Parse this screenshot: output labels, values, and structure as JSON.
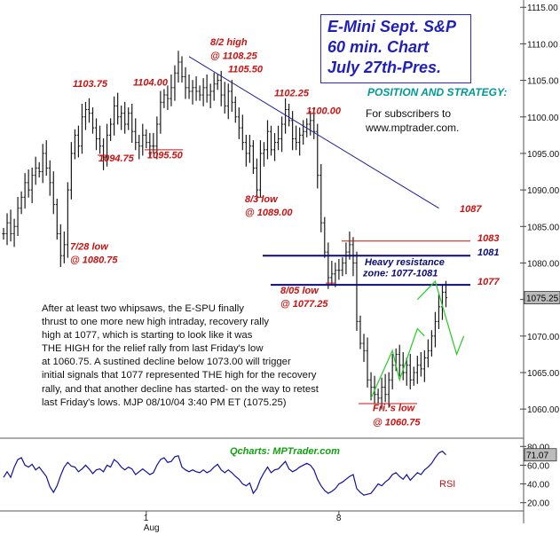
{
  "header": {
    "title_lines": [
      "E-Mini Sept. S&P",
      "60 min. Chart",
      "July 27th-Pres."
    ],
    "strategy_heading": "POSITION AND STRATEGY:",
    "subscriber_lines": [
      "For subscribers to",
      "www.mptrader.com."
    ]
  },
  "commentary": {
    "lines": [
      "After at least two whipsaws, the E-SPU finally",
      "thrust to one more new high intraday, recovery rally",
      "high at 1077, which is starting to look like it was",
      "THE HIGH for the relief rally from last Friday's low",
      "at 1060.75. A sustined decline below 1073.00 will trigger",
      "initial signals that 1077 represented THE high for the recovery",
      "rally, and that another decline has started- on the way to retest",
      "last Friday's lows.  MJP 08/10/04 3:40 PM ET (1075.25)"
    ]
  },
  "footer": {
    "source": "Qcharts: MPTrader.com",
    "rsi_label": "RSI"
  },
  "colors": {
    "title": "#1f1fbf",
    "annotation_red": "#cc1111",
    "price_bar": "#1a1a1a",
    "trendline": "#1c1c9c",
    "resistance": "#0b0b7a",
    "projection": "#22cc22",
    "strategy_heading": "#009999",
    "rsi_line": "#1010a0",
    "source": "#10a010",
    "last_price_box": "#bbbbbb"
  },
  "chart_data": [
    {
      "type": "line",
      "title": "E-Mini Sept. S&P 60 min. Chart",
      "ylim": [
        1056.5,
        1116
      ],
      "y_ticks": [
        1060,
        1065,
        1070,
        1075,
        1080,
        1085,
        1090,
        1095,
        1100,
        1105,
        1110,
        1115
      ],
      "y_tick_labels": [
        "1060.00",
        "1065.00",
        "1070.00",
        "1075.00",
        "1080.00",
        "1085.00",
        "1090.00",
        "1095.00",
        "1100.00",
        "1105.00",
        "1110.00",
        "1115.00"
      ],
      "x_range": [
        0,
        125
      ],
      "x_ticks": [
        {
          "bar": 40,
          "label": "1",
          "sublabel": "Aug"
        },
        {
          "bar": 94,
          "label": "8",
          "sublabel": ""
        }
      ],
      "last_price": {
        "value": 1075.25,
        "label": "1075.25"
      },
      "series": [
        {
          "name": "",
          "close": [
            1084,
            1085.5,
            1084,
            1085,
            1087.5,
            1089,
            1091,
            1090,
            1092,
            1093,
            1092.5,
            1095,
            1093,
            1091,
            1088,
            1084,
            1081,
            1082.5,
            1090,
            1095,
            1097.5,
            1096,
            1100,
            1101,
            1100.5,
            1098.5,
            1097,
            1096,
            1094.5,
            1097.5,
            1099,
            1101.5,
            1100,
            1100.5,
            1099,
            1100.5,
            1098,
            1096.5,
            1096,
            1097.5,
            1096.5,
            1096,
            1096,
            1099,
            1102,
            1103,
            1102.5,
            1104,
            1106,
            1107.5,
            1105.5,
            1104,
            1103.5,
            1104,
            1103.5,
            1103,
            1104,
            1103,
            1103.5,
            1104.5,
            1105,
            1103,
            1101.5,
            1103.5,
            1102,
            1100,
            1098.5,
            1096.5,
            1095,
            1096,
            1093,
            1090,
            1095,
            1095.5,
            1098,
            1095.5,
            1096.5,
            1097,
            1099,
            1101,
            1099.5,
            1097,
            1096.5,
            1097.5,
            1098,
            1099,
            1099.5,
            1098,
            1092,
            1085.5,
            1081.5,
            1078,
            1078.5,
            1079,
            1079,
            1080,
            1081.5,
            1082.5,
            1080,
            1072,
            1069,
            1068,
            1064,
            1063,
            1062,
            1061.5,
            1063,
            1062,
            1064,
            1066,
            1067.5,
            1066,
            1065,
            1066,
            1064,
            1065,
            1066,
            1065.5,
            1067,
            1068,
            1070,
            1072,
            1074,
            1076,
            1075.25
          ]
        }
      ],
      "annotations": [
        {
          "text": "8/2  high",
          "price": 1109.8
        },
        {
          "text": "@ 1108.25",
          "price": 1107.9
        },
        {
          "text": "1105.50",
          "price": 1106.1
        },
        {
          "text": "1103.75",
          "price": 1104.1
        },
        {
          "text": "1104.00",
          "price": 1104.3
        },
        {
          "text": "1102.25",
          "price": 1102.8
        },
        {
          "text": "1100.00",
          "price": 1100.4
        },
        {
          "text": "1094.75",
          "price": 1093.9
        },
        {
          "text": "1095.50",
          "price": 1094.3
        },
        {
          "text": "8/3 low",
          "price": 1088.3
        },
        {
          "text": "@ 1089.00",
          "price": 1086.5
        },
        {
          "text": "7/28 low",
          "price": 1081.8
        },
        {
          "text": "@ 1080.75",
          "price": 1080.0
        },
        {
          "text": "1087",
          "price": 1087
        },
        {
          "text": "1083",
          "price": 1083
        },
        {
          "text": "1081",
          "price": 1081
        },
        {
          "text": "Heavy resistance",
          "price": 1079.7
        },
        {
          "text": "zone: 1077-1081",
          "price": 1078.2
        },
        {
          "text": "1077",
          "price": 1077
        },
        {
          "text": "8/05 low",
          "price": 1075.8
        },
        {
          "text": "@ 1077.25",
          "price": 1074.0
        },
        {
          "text": "Fri.'s low",
          "price": 1059.7
        },
        {
          "text": "@ 1060.75",
          "price": 1057.8
        }
      ],
      "levels": [
        {
          "name": "1083",
          "value": 1083
        },
        {
          "name": "1081",
          "value": 1081
        },
        {
          "name": "1077",
          "value": 1077
        }
      ],
      "trendline": {
        "from": {
          "bar": 52,
          "price": 1108.25
        },
        "to": {
          "bar": 122,
          "price": 1087.5
        }
      },
      "projection": [
        {
          "bar": 116,
          "price": 1075
        },
        {
          "bar": 121,
          "price": 1077.5
        },
        {
          "bar": 127,
          "price": 1067.5
        },
        {
          "bar": 129,
          "price": 1070
        }
      ]
    },
    {
      "type": "line",
      "title": "",
      "ylabel": "RSI",
      "ylim": [
        15,
        85
      ],
      "y_ticks": [
        20,
        40,
        60,
        80
      ],
      "y_tick_labels": [
        "20.00",
        "40.00",
        "60.00",
        "80.00"
      ],
      "last_value": {
        "value": 71.07,
        "label": "71.07"
      },
      "series": [
        {
          "name": "RSI",
          "values": [
            47,
            53,
            47,
            58,
            66,
            68,
            60,
            58,
            61,
            55,
            58,
            53,
            48,
            37,
            31,
            38,
            49,
            58,
            63,
            59,
            58,
            53,
            56,
            60,
            56,
            51,
            55,
            56,
            53,
            60,
            58,
            66,
            63,
            58,
            55,
            58,
            56,
            50,
            53,
            56,
            53,
            50,
            52,
            60,
            66,
            68,
            63,
            64,
            69,
            70,
            58,
            55,
            53,
            55,
            53,
            52,
            55,
            52,
            54,
            58,
            61,
            55,
            52,
            55,
            52,
            48,
            45,
            40,
            38,
            41,
            30,
            35,
            45,
            52,
            58,
            52,
            55,
            56,
            60,
            64,
            56,
            53,
            55,
            58,
            60,
            62,
            60,
            55,
            45,
            38,
            33,
            30,
            32,
            35,
            40,
            42,
            45,
            48,
            50,
            35,
            31,
            28,
            29,
            30,
            35,
            40,
            38,
            42,
            45,
            50,
            52,
            48,
            45,
            50,
            44,
            48,
            52,
            50,
            55,
            58,
            62,
            68,
            73,
            75,
            71.07
          ]
        }
      ]
    }
  ]
}
